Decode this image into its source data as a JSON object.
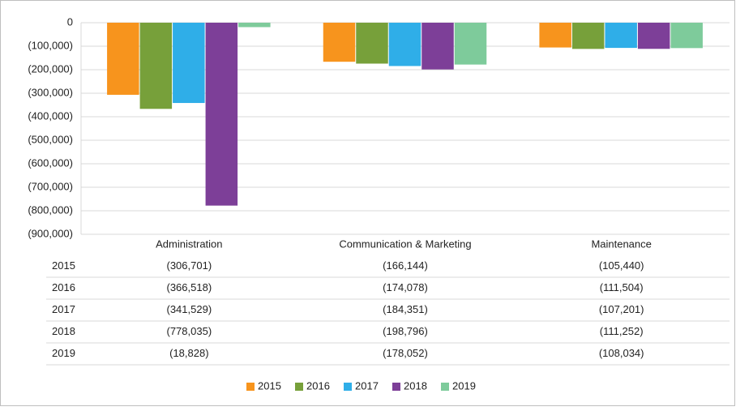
{
  "chart_data": {
    "type": "bar",
    "categories": [
      "Administration",
      "Communication & Marketing",
      "Maintenance"
    ],
    "series": [
      {
        "name": "2015",
        "color": "#f7941d",
        "values": [
          -306701,
          -166144,
          -105440
        ],
        "value_labels": [
          "(306,701)",
          "(166,144)",
          "(105,440)"
        ]
      },
      {
        "name": "2016",
        "color": "#77a03a",
        "values": [
          -366518,
          -174078,
          -111504
        ],
        "value_labels": [
          "(366,518)",
          "(174,078)",
          "(111,504)"
        ]
      },
      {
        "name": "2017",
        "color": "#2faee8",
        "values": [
          -341529,
          -184351,
          -107201
        ],
        "value_labels": [
          "(341,529)",
          "(184,351)",
          "(107,201)"
        ]
      },
      {
        "name": "2018",
        "color": "#7d3f98",
        "values": [
          -778035,
          -198796,
          -111252
        ],
        "value_labels": [
          "(778,035)",
          "(198,796)",
          "(111,252)"
        ]
      },
      {
        "name": "2019",
        "color": "#7ecb9b",
        "values": [
          -18828,
          -178052,
          -108034
        ],
        "value_labels": [
          "(18,828)",
          "(178,052)",
          "(108,034)"
        ]
      }
    ],
    "ylim": [
      -900000,
      0
    ],
    "yticks": [
      {
        "value": -900000,
        "label": "(900,000)"
      },
      {
        "value": -800000,
        "label": "(800,000)"
      },
      {
        "value": -700000,
        "label": "(700,000)"
      },
      {
        "value": -600000,
        "label": "(600,000)"
      },
      {
        "value": -500000,
        "label": "(500,000)"
      },
      {
        "value": -400000,
        "label": "(400,000)"
      },
      {
        "value": -300000,
        "label": "(300,000)"
      },
      {
        "value": -200000,
        "label": "(200,000)"
      },
      {
        "value": -100000,
        "label": "(100,000)"
      },
      0
    ],
    "grid": true,
    "legend": "bottom"
  }
}
